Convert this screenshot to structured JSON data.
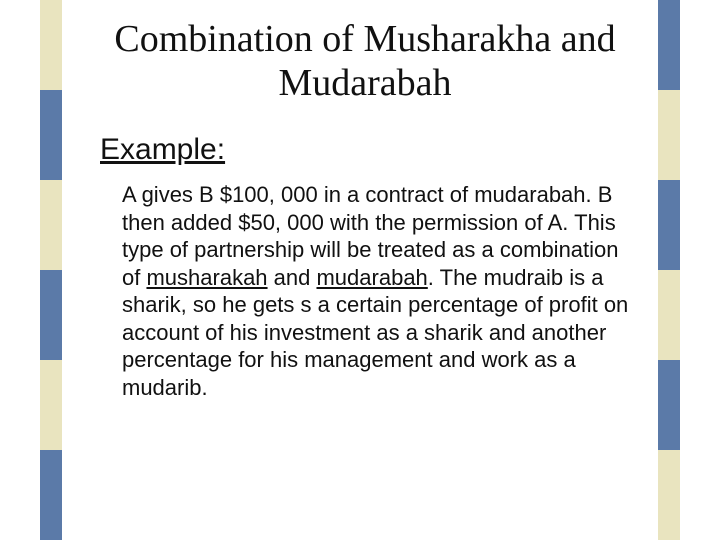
{
  "stripes": {
    "segment_heights": [
      90,
      90,
      90,
      90,
      90,
      90
    ],
    "left_colors": [
      "#e9e4bf",
      "#5b7aa8",
      "#e9e4bf",
      "#5b7aa8",
      "#e9e4bf",
      "#5b7aa8"
    ],
    "right_colors": [
      "#5b7aa8",
      "#e9e4bf",
      "#5b7aa8",
      "#e9e4bf",
      "#5b7aa8",
      "#e9e4bf"
    ]
  },
  "title_line1": "Combination of Musharakha and",
  "title_line2": "Mudarabah",
  "subheading": "Example:",
  "body_pre": "A gives B $100, 000 in a contract of mudarabah.  B then added $50, 000 with the permission of A. This type of partnership will be treated as a combination of ",
  "term1": "musharakah",
  "mid1": " and ",
  "term2": "mudarabah",
  "body_post": ". The mudraib is a sharik, so he gets s a certain percentage of profit on account of his investment as a sharik and another percentage for his management and work as a mudarib."
}
